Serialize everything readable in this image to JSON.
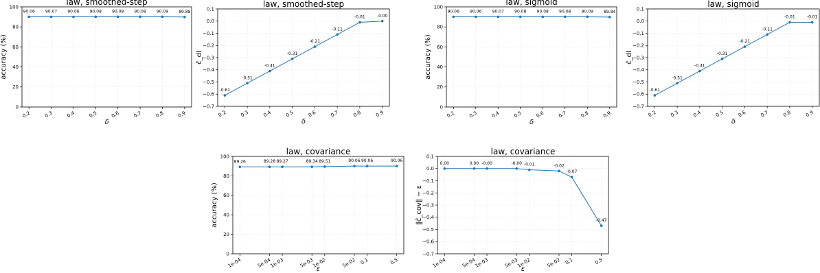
{
  "chart_data": [
    {
      "type": "line",
      "title": "law, smoothed-step",
      "xlabel": "δ",
      "ylabel": "accuracy (%)",
      "x_scale": "linear",
      "categories": [
        "0.2",
        "0.3",
        "0.4",
        "0.5",
        "0.6",
        "0.7",
        "0.8",
        "0.9"
      ],
      "x": [
        0.2,
        0.3,
        0.4,
        0.5,
        0.6,
        0.7,
        0.8,
        0.9
      ],
      "values": [
        90.06,
        90.07,
        90.06,
        90.08,
        90.08,
        90.08,
        90.09,
        89.88
      ],
      "labels": [
        "90.06",
        "90.07",
        "90.06",
        "90.08",
        "90.08",
        "90.08",
        "90.09",
        "89.88"
      ],
      "ylim": [
        0,
        100
      ],
      "yticks": [
        0,
        20,
        40,
        60,
        80,
        100
      ],
      "ytick_labels": [
        "0",
        "20",
        "40",
        "60",
        "80",
        "100"
      ],
      "grid": true,
      "color": "#1f77b4"
    },
    {
      "type": "line",
      "title": "law, smoothed-step",
      "xlabel": "δ",
      "ylabel": "ĉ_dI",
      "x_scale": "linear",
      "categories": [
        "0.2",
        "0.3",
        "0.4",
        "0.5",
        "0.6",
        "0.7",
        "0.8",
        "0.9"
      ],
      "x": [
        0.2,
        0.3,
        0.4,
        0.5,
        0.6,
        0.7,
        0.8,
        0.9
      ],
      "values": [
        -0.61,
        -0.51,
        -0.41,
        -0.31,
        -0.21,
        -0.11,
        -0.01,
        -0.0
      ],
      "labels": [
        "-0.61",
        "-0.51",
        "-0.41",
        "-0.31",
        "-0.21",
        "-0.11",
        "-0.01",
        "-0.00"
      ],
      "ylim": [
        -0.7,
        0.1
      ],
      "yticks": [
        -0.7,
        -0.6,
        -0.5,
        -0.4,
        -0.3,
        -0.2,
        -0.1,
        0.0,
        0.1
      ],
      "ytick_labels": [
        "−0.7",
        "−0.6",
        "−0.5",
        "−0.4",
        "−0.3",
        "−0.2",
        "−0.1",
        "0.0",
        "0.1"
      ],
      "grid": true,
      "color": "#1f77b4"
    },
    {
      "type": "line",
      "title": "law, sigmoid",
      "xlabel": "δ",
      "ylabel": "accuracy (%)",
      "x_scale": "linear",
      "categories": [
        "0.2",
        "0.3",
        "0.4",
        "0.5",
        "0.6",
        "0.7",
        "0.8",
        "0.9"
      ],
      "x": [
        0.2,
        0.3,
        0.4,
        0.5,
        0.6,
        0.7,
        0.8,
        0.9
      ],
      "values": [
        90.06,
        90.06,
        90.07,
        90.08,
        90.08,
        90.08,
        90.09,
        89.84
      ],
      "labels": [
        "90.06",
        "90.06",
        "90.07",
        "90.08",
        "90.08",
        "90.08",
        "90.09",
        "89.84"
      ],
      "ylim": [
        0,
        100
      ],
      "yticks": [
        0,
        20,
        40,
        60,
        80,
        100
      ],
      "ytick_labels": [
        "0",
        "20",
        "40",
        "60",
        "80",
        "100"
      ],
      "grid": true,
      "color": "#1f77b4"
    },
    {
      "type": "line",
      "title": "law, sigmoid",
      "xlabel": "δ",
      "ylabel": "ĉ_dI",
      "x_scale": "linear",
      "categories": [
        "0.2",
        "0.3",
        "0.4",
        "0.5",
        "0.6",
        "0.7",
        "0.8",
        "0.9"
      ],
      "x": [
        0.2,
        0.3,
        0.4,
        0.5,
        0.6,
        0.7,
        0.8,
        0.9
      ],
      "values": [
        -0.61,
        -0.51,
        -0.41,
        -0.31,
        -0.21,
        -0.11,
        -0.01,
        -0.01
      ],
      "labels": [
        "-0.61",
        "-0.51",
        "-0.41",
        "-0.31",
        "-0.21",
        "-0.11",
        "-0.01",
        "-0.01"
      ],
      "ylim": [
        -0.7,
        0.1
      ],
      "yticks": [
        -0.7,
        -0.6,
        -0.5,
        -0.4,
        -0.3,
        -0.2,
        -0.1,
        0.0,
        0.1
      ],
      "ytick_labels": [
        "−0.7",
        "−0.6",
        "−0.5",
        "−0.4",
        "−0.3",
        "−0.2",
        "−0.1",
        "0.0",
        "0.1"
      ],
      "grid": true,
      "color": "#1f77b4"
    },
    {
      "type": "line",
      "title": "law, covariance",
      "xlabel": "ε",
      "ylabel": "accuracy (%)",
      "x_scale": "log",
      "categories": [
        "1e-04",
        "5e-04",
        "1e-03",
        "5e-03",
        "1e-02",
        "5e-02",
        "0.1",
        "0.5"
      ],
      "x": [
        0.0001,
        0.0005,
        0.001,
        0.005,
        0.01,
        0.05,
        0.1,
        0.5
      ],
      "values": [
        89.26,
        89.28,
        89.27,
        89.34,
        89.51,
        90.06,
        90.06,
        90.06
      ],
      "labels": [
        "89.26",
        "89.28",
        "89.27",
        "89.34",
        "89.51",
        "90.06",
        "90.06",
        "90.06"
      ],
      "ylim": [
        0,
        100
      ],
      "yticks": [
        0,
        20,
        40,
        60,
        80,
        100
      ],
      "ytick_labels": [
        "0",
        "20",
        "40",
        "60",
        "80",
        "100"
      ],
      "grid": true,
      "color": "#1f77b4"
    },
    {
      "type": "line",
      "title": "law, covariance",
      "xlabel": "ε",
      "ylabel": "‖ĉ_cov‖ − ε",
      "x_scale": "log",
      "categories": [
        "1e-04",
        "5e-04",
        "1e-03",
        "5e-03",
        "1e-02",
        "5e-02",
        "0.1",
        "0.5"
      ],
      "x": [
        0.0001,
        0.0005,
        0.001,
        0.005,
        0.01,
        0.05,
        0.1,
        0.5
      ],
      "values": [
        0.0,
        0.0,
        -0.0,
        -0.0,
        -0.01,
        -0.02,
        -0.07,
        -0.47
      ],
      "labels": [
        "0.00",
        "0.00",
        "-0.00",
        "-0.00",
        "-0.01",
        "-0.02",
        "-0.07",
        "-0.47"
      ],
      "ylim": [
        -0.7,
        0.1
      ],
      "yticks": [
        -0.7,
        -0.6,
        -0.5,
        -0.4,
        -0.3,
        -0.2,
        -0.1,
        0.0,
        0.1
      ],
      "ytick_labels": [
        "−0.7",
        "−0.6",
        "−0.5",
        "−0.4",
        "−0.3",
        "−0.2",
        "−0.1",
        "0.0",
        "0.1"
      ],
      "grid": true,
      "color": "#1f77b4"
    }
  ]
}
